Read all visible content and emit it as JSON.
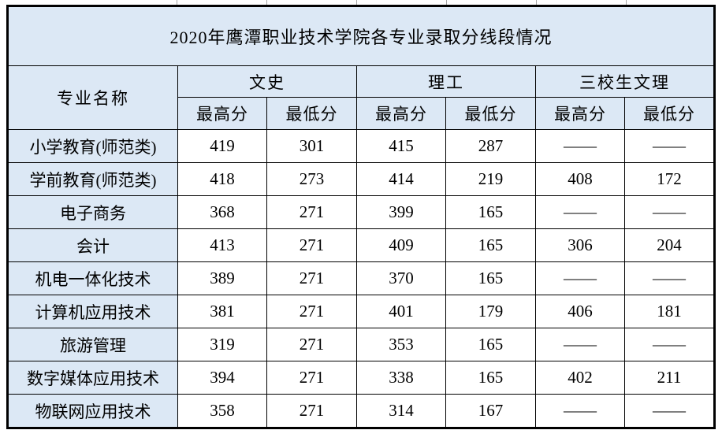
{
  "title": "2020年鹰潭职业技术学院各专业录取分线段情况",
  "table": {
    "name_header": "专业名称",
    "groups": [
      {
        "label": "文史",
        "sub": [
          "最高分",
          "最低分"
        ]
      },
      {
        "label": "理工",
        "sub": [
          "最高分",
          "最低分"
        ]
      },
      {
        "label": "三校生文理",
        "sub": [
          "最高分",
          "最低分"
        ]
      }
    ],
    "rows": [
      {
        "name": "小学教育(师范类)",
        "values": [
          "419",
          "301",
          "415",
          "287",
          "——",
          "——"
        ]
      },
      {
        "name": "学前教育(师范类)",
        "values": [
          "418",
          "273",
          "414",
          "219",
          "408",
          "172"
        ]
      },
      {
        "name": "电子商务",
        "values": [
          "368",
          "271",
          "399",
          "165",
          "——",
          "——"
        ]
      },
      {
        "name": "会计",
        "values": [
          "413",
          "271",
          "409",
          "165",
          "306",
          "204"
        ]
      },
      {
        "name": "机电一体化技术",
        "values": [
          "389",
          "271",
          "370",
          "165",
          "——",
          "——"
        ]
      },
      {
        "name": "计算机应用技术",
        "values": [
          "381",
          "271",
          "401",
          "179",
          "406",
          "181"
        ]
      },
      {
        "name": "旅游管理",
        "values": [
          "319",
          "271",
          "353",
          "165",
          "——",
          "——"
        ]
      },
      {
        "name": "数字媒体应用技术",
        "values": [
          "394",
          "271",
          "338",
          "165",
          "402",
          "211"
        ]
      },
      {
        "name": "物联网应用技术",
        "values": [
          "358",
          "271",
          "314",
          "167",
          "——",
          "——"
        ]
      }
    ]
  },
  "colors": {
    "header_fill": "#dce8f5",
    "cell_fill": "#ffffff",
    "border": "#000000",
    "gridline": "#a6a6a6",
    "text": "#000000"
  }
}
